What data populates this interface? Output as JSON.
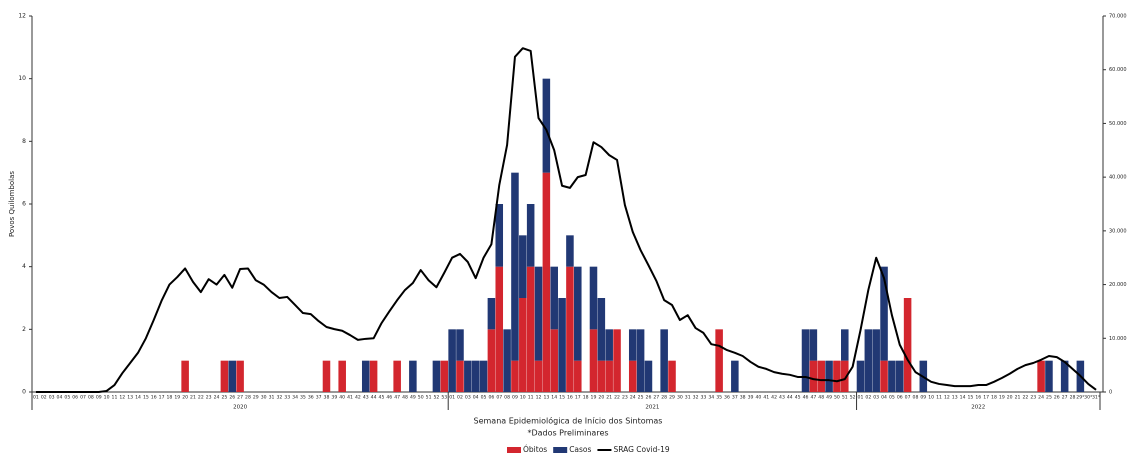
{
  "chart_data": {
    "type": "bar",
    "stacked": true,
    "y_label": "Povos Quilombolas",
    "x_label": "Semana Epidemiológica de Início dos Sintomas",
    "note": "*Dados Preliminares",
    "categories": [
      "01",
      "02",
      "03",
      "04",
      "05",
      "06",
      "07",
      "08",
      "09",
      "10",
      "11",
      "12",
      "13",
      "14",
      "15",
      "16",
      "17",
      "18",
      "19",
      "20",
      "21",
      "22",
      "23",
      "24",
      "25",
      "26",
      "27",
      "28",
      "29",
      "30",
      "31",
      "32",
      "33",
      "34",
      "35",
      "36",
      "37",
      "38",
      "39",
      "40",
      "41",
      "42",
      "43",
      "44",
      "45",
      "46",
      "47",
      "48",
      "49",
      "50",
      "51",
      "52",
      "53",
      "01",
      "02",
      "03",
      "04",
      "05",
      "06",
      "07",
      "08",
      "09",
      "10",
      "11",
      "12",
      "13",
      "14",
      "15",
      "16",
      "17",
      "18",
      "19",
      "20",
      "21",
      "22",
      "23",
      "24",
      "25",
      "26",
      "27",
      "28",
      "29",
      "30",
      "31",
      "32",
      "33",
      "34",
      "35",
      "36",
      "37",
      "38",
      "39",
      "40",
      "41",
      "42",
      "43",
      "44",
      "45",
      "46",
      "47",
      "48",
      "49",
      "50",
      "51",
      "52",
      "01",
      "02",
      "03",
      "04",
      "05",
      "06",
      "07",
      "08",
      "09",
      "10",
      "11",
      "12",
      "13",
      "14",
      "15",
      "16",
      "17",
      "18",
      "19",
      "20",
      "21",
      "22",
      "23",
      "24",
      "25",
      "26",
      "27",
      "28",
      "29*",
      "30*",
      "31*"
    ],
    "x_groups": [
      {
        "label": "2020",
        "count": 53
      },
      {
        "label": "2021",
        "count": 52
      },
      {
        "label": "2022",
        "count": 31
      }
    ],
    "series": [
      {
        "name": "Óbitos",
        "color": "#d3262e",
        "values": [
          0,
          0,
          0,
          0,
          0,
          0,
          0,
          0,
          0,
          0,
          0,
          0,
          0,
          0,
          0,
          0,
          0,
          0,
          0,
          1,
          0,
          0,
          0,
          0,
          1,
          0,
          1,
          0,
          0,
          0,
          0,
          0,
          0,
          0,
          0,
          0,
          0,
          1,
          0,
          1,
          0,
          0,
          0,
          1,
          0,
          0,
          1,
          0,
          0,
          0,
          0,
          0,
          1,
          0,
          1,
          0,
          0,
          0,
          2,
          4,
          0,
          1,
          3,
          4,
          1,
          7,
          2,
          0,
          4,
          1,
          0,
          2,
          1,
          1,
          2,
          0,
          1,
          0,
          0,
          0,
          0,
          1,
          0,
          0,
          0,
          0,
          0,
          2,
          0,
          0,
          0,
          0,
          0,
          0,
          0,
          0,
          0,
          0,
          0,
          1,
          1,
          0,
          1,
          1,
          0,
          0,
          0,
          0,
          1,
          0,
          0,
          3,
          0,
          0,
          0,
          0,
          0,
          0,
          0,
          0,
          0,
          0,
          0,
          0,
          0,
          0,
          0,
          0,
          1,
          0,
          0,
          0,
          0,
          0,
          0,
          0
        ]
      },
      {
        "name": "Casos",
        "color": "#213874",
        "values": [
          0,
          0,
          0,
          0,
          0,
          0,
          0,
          0,
          0,
          0,
          0,
          0,
          0,
          0,
          0,
          0,
          0,
          0,
          0,
          0,
          0,
          0,
          0,
          0,
          0,
          1,
          0,
          0,
          0,
          0,
          0,
          0,
          0,
          0,
          0,
          0,
          0,
          0,
          0,
          0,
          0,
          0,
          1,
          0,
          0,
          0,
          0,
          0,
          1,
          0,
          0,
          1,
          0,
          2,
          1,
          1,
          1,
          1,
          1,
          2,
          2,
          6,
          2,
          2,
          3,
          3,
          2,
          3,
          1,
          3,
          0,
          2,
          2,
          1,
          0,
          0,
          1,
          2,
          1,
          0,
          2,
          0,
          0,
          0,
          0,
          0,
          0,
          0,
          0,
          1,
          0,
          0,
          0,
          0,
          0,
          0,
          0,
          0,
          2,
          1,
          0,
          1,
          0,
          1,
          0,
          1,
          2,
          2,
          3,
          1,
          1,
          0,
          0,
          1,
          0,
          0,
          0,
          0,
          0,
          0,
          0,
          0,
          0,
          0,
          0,
          0,
          0,
          0,
          0,
          1,
          0,
          1,
          0,
          1,
          0,
          0
        ]
      },
      {
        "name": "SRAG Covid-19",
        "color": "#000000",
        "type": "line",
        "axis": "y2",
        "values": [
          0,
          0,
          0,
          0,
          0,
          0,
          0,
          0,
          0,
          200,
          1300,
          3500,
          5400,
          7300,
          10000,
          13400,
          17000,
          20000,
          21400,
          23000,
          20500,
          18600,
          21000,
          20000,
          21800,
          19400,
          22900,
          23000,
          20800,
          20000,
          18600,
          17500,
          17700,
          16200,
          14700,
          14500,
          13200,
          12100,
          11700,
          11400,
          10600,
          9700,
          9900,
          10000,
          12800,
          15000,
          17100,
          19000,
          20300,
          22700,
          20800,
          19500,
          22200,
          25000,
          25700,
          24200,
          21200,
          25000,
          27500,
          38500,
          46000,
          62400,
          64000,
          63500,
          51000,
          48800,
          45000,
          38400,
          38000,
          40000,
          40400,
          46500,
          45600,
          44100,
          43200,
          34800,
          29800,
          26400,
          23600,
          20700,
          17100,
          16200,
          13400,
          14300,
          11900,
          11000,
          8900,
          8600,
          7800,
          7300,
          6700,
          5600,
          4700,
          4300,
          3700,
          3400,
          3200,
          2800,
          2800,
          2400,
          2200,
          2200,
          2000,
          2400,
          4700,
          11500,
          19000,
          25000,
          21200,
          14300,
          8800,
          6000,
          3700,
          2800,
          1900,
          1500,
          1300,
          1100,
          1100,
          1100,
          1300,
          1300,
          1900,
          2600,
          3400,
          4300,
          5000,
          5400,
          6000,
          6700,
          6500,
          5600,
          4300,
          3000,
          1500,
          400
        ]
      }
    ],
    "ylim": [
      0,
      12
    ],
    "yticks": [
      0,
      2,
      4,
      6,
      8,
      10,
      12
    ],
    "y2lim": [
      0,
      70000
    ],
    "y2ticks": [
      0,
      {
        "value": 10000,
        "label": "10.000"
      },
      {
        "value": 20000,
        "label": "20.000"
      },
      {
        "value": 30000,
        "label": "30.000"
      },
      {
        "value": 40000,
        "label": "40.000"
      },
      {
        "value": 50000,
        "label": "50.000"
      },
      {
        "value": 60000,
        "label": "60.000"
      },
      {
        "value": 70000,
        "label": "70.000"
      }
    ],
    "grid": false,
    "legend": "bottom"
  }
}
